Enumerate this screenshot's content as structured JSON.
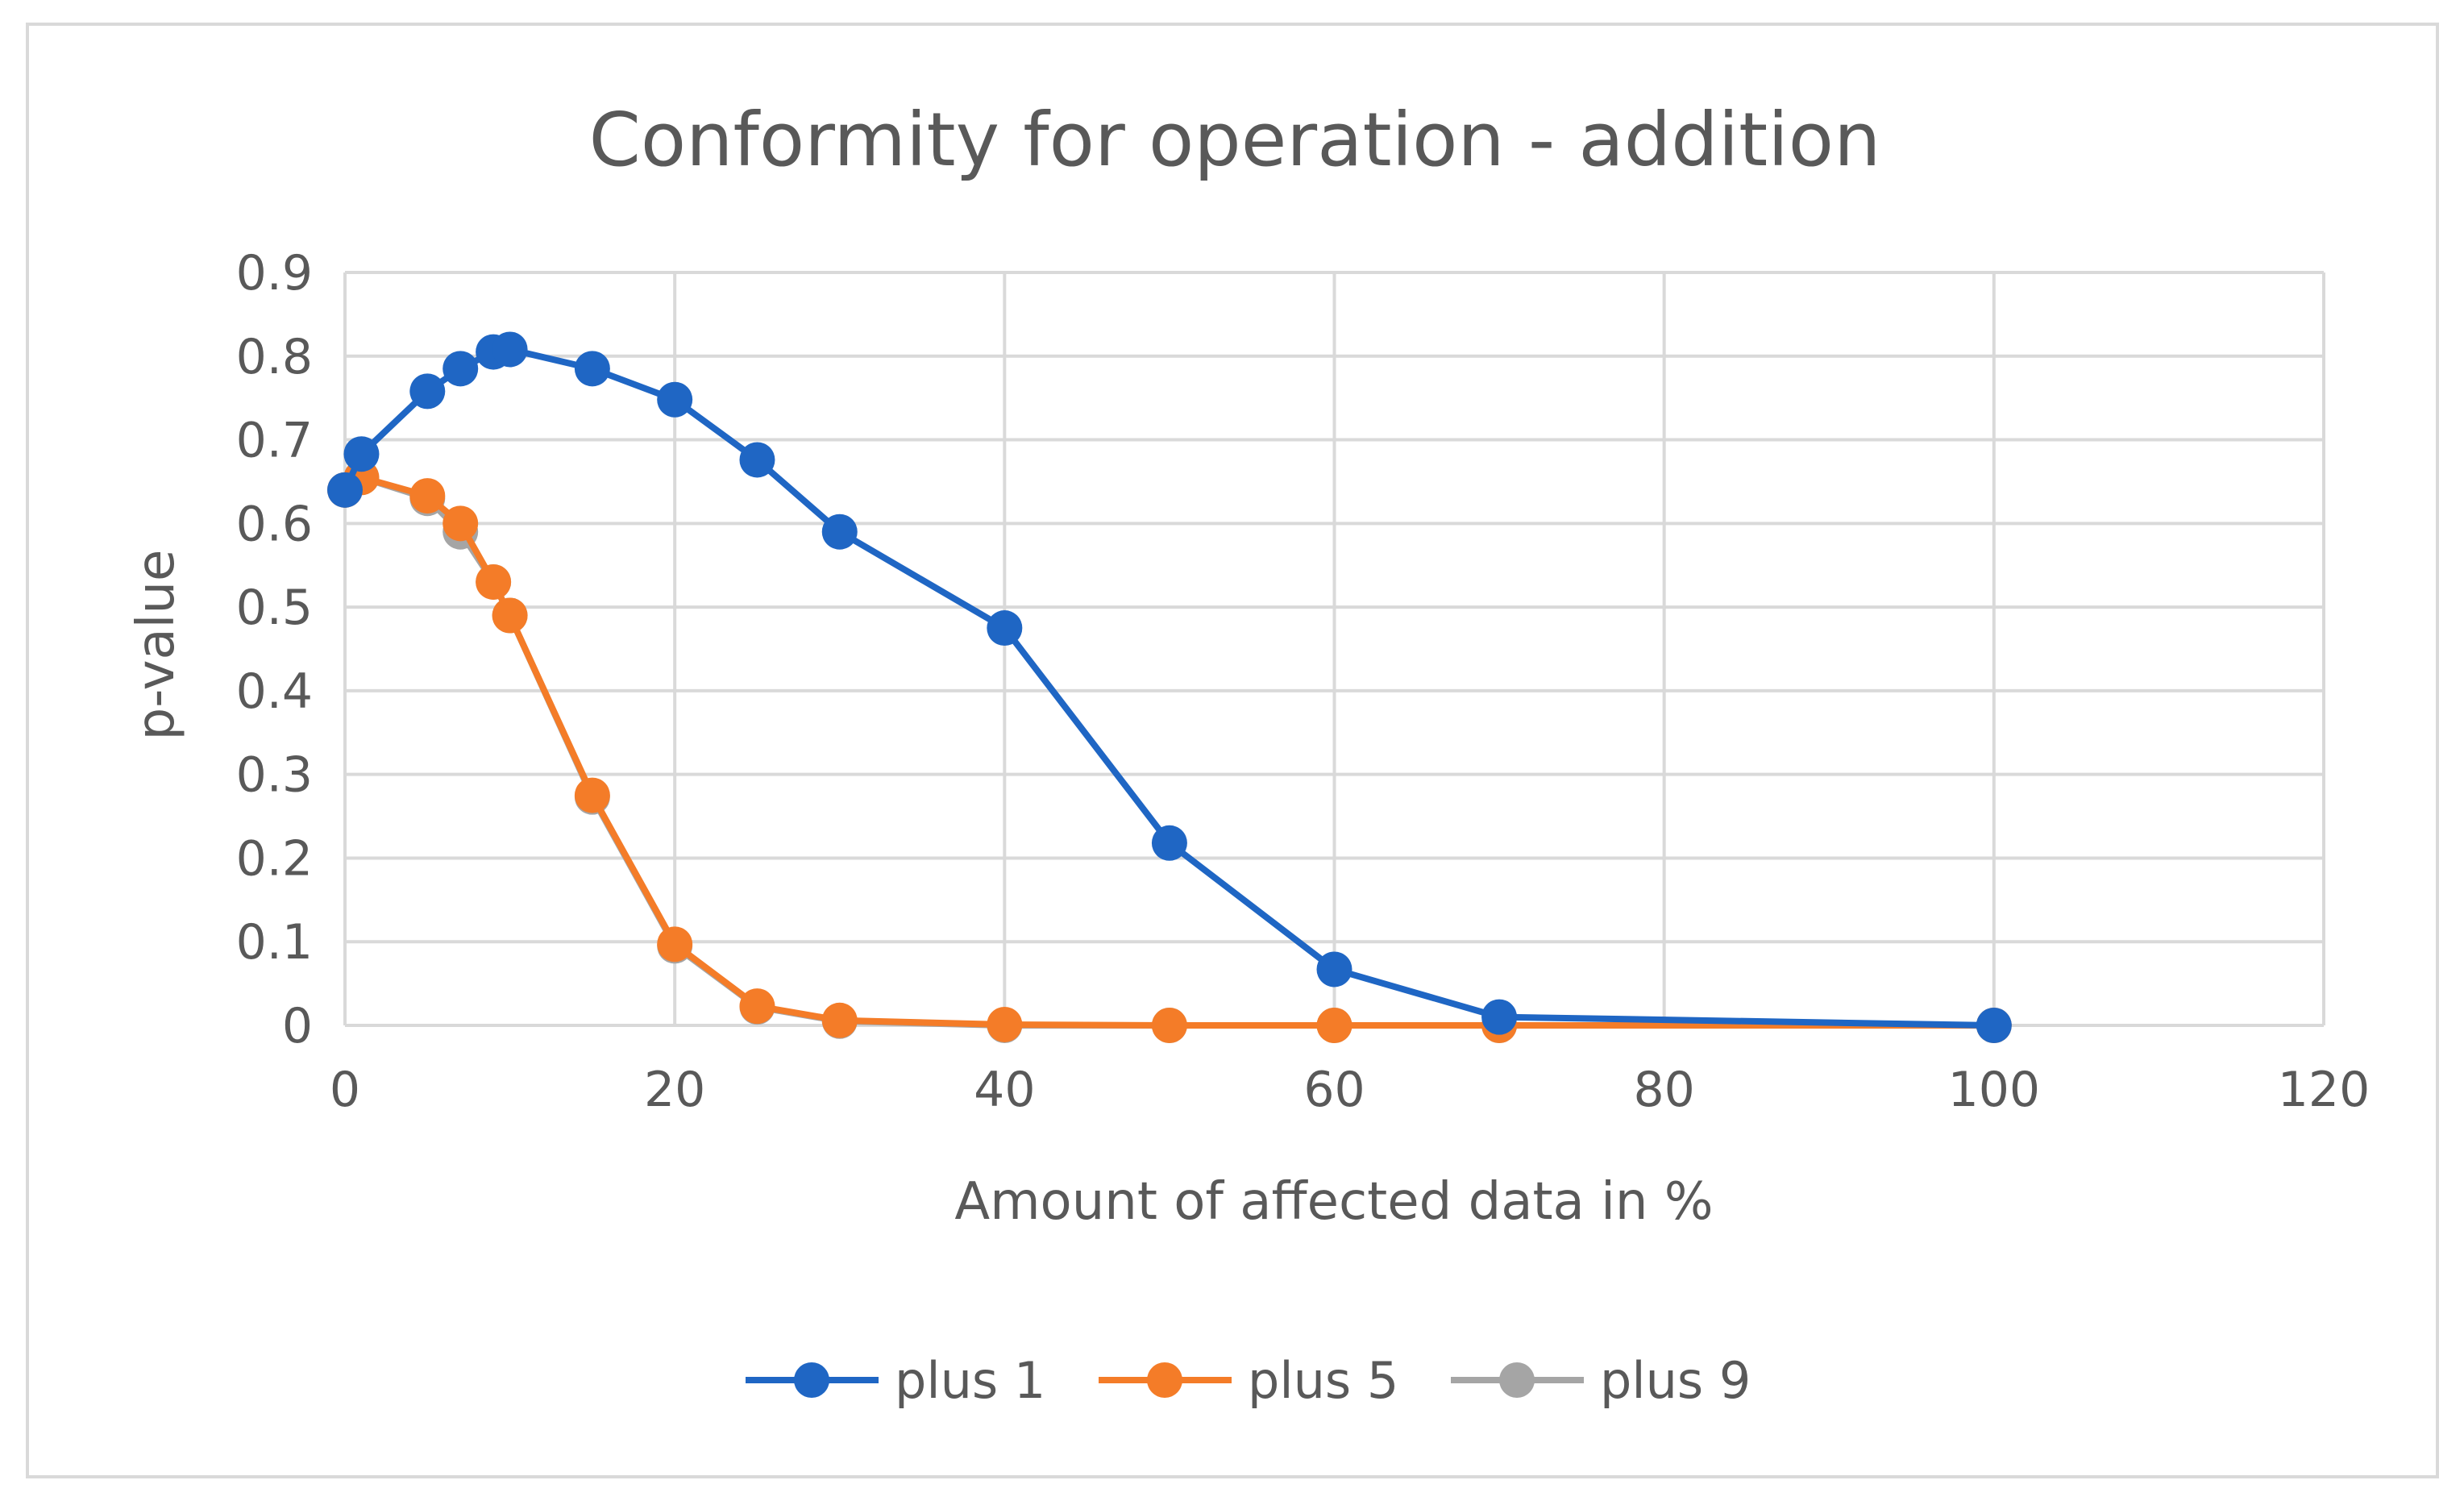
{
  "chart_data": {
    "type": "line",
    "title": "Conformity for operation - addition",
    "xlabel": "Amount of affected data in %",
    "ylabel": "p-value",
    "xlim": [
      0,
      120
    ],
    "ylim": [
      0,
      0.9
    ],
    "x_ticks": [
      "0",
      "20",
      "40",
      "60",
      "80",
      "100",
      "120"
    ],
    "y_ticks": [
      "0",
      "0.1",
      "0.2",
      "0.3",
      "0.4",
      "0.5",
      "0.6",
      "0.7",
      "0.8",
      "0.9"
    ],
    "grid": true,
    "legend_position": "bottom",
    "x": [
      0,
      1,
      5,
      7,
      9,
      10,
      15,
      20,
      25,
      30,
      40,
      50,
      60,
      70,
      100
    ],
    "series": [
      {
        "name": "plus 1",
        "color": "#1f66c4",
        "values": [
          0.64,
          0.683,
          0.758,
          0.785,
          0.805,
          0.808,
          0.785,
          0.748,
          0.676,
          0.59,
          0.475,
          0.218,
          0.067,
          0.01,
          0.0
        ]
      },
      {
        "name": "plus 5",
        "color": "#f47c28",
        "values": [
          0.64,
          0.655,
          0.633,
          0.6,
          0.53,
          0.49,
          0.275,
          0.097,
          0.023,
          0.006,
          0.001,
          0.0,
          0.0,
          0.0,
          0.0
        ]
      },
      {
        "name": "plus 9",
        "color": "#a5a5a5",
        "values": [
          0.64,
          0.655,
          0.63,
          0.59,
          0.53,
          0.49,
          0.273,
          0.095,
          0.022,
          0.005,
          0.0,
          0.0,
          0.0,
          0.0,
          0.0
        ]
      }
    ]
  }
}
